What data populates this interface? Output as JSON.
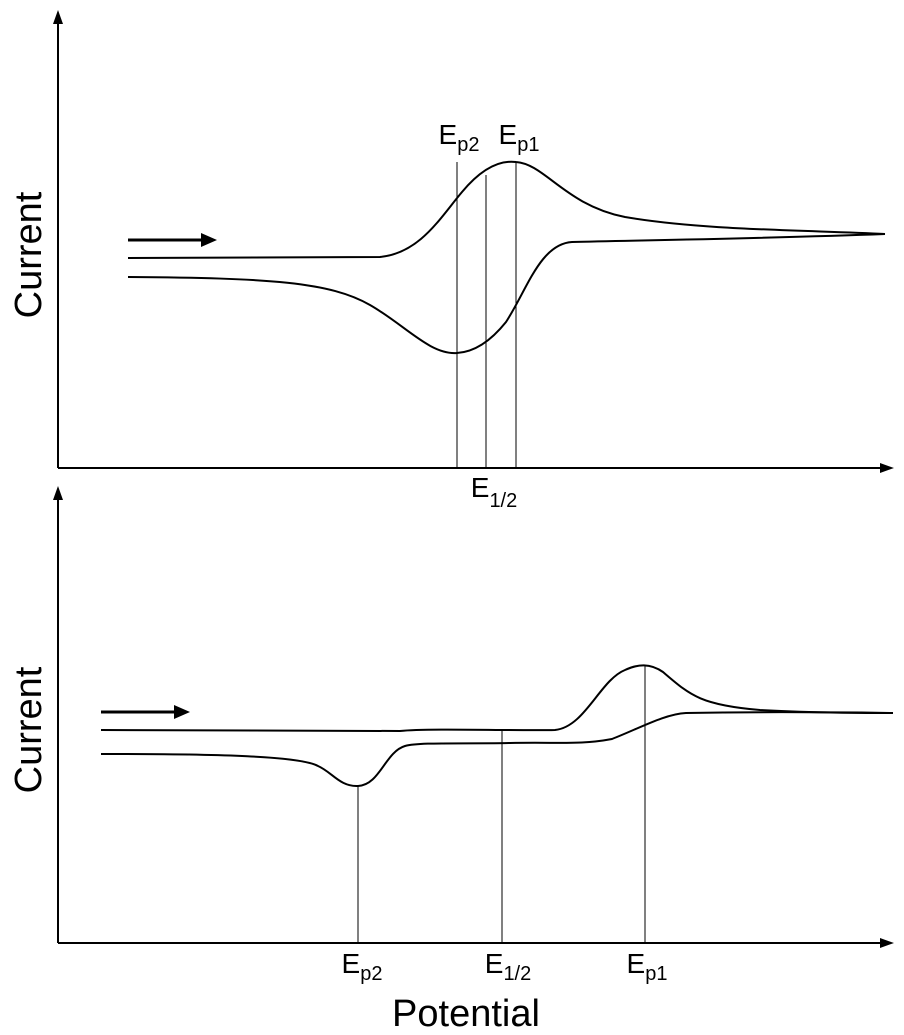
{
  "colors": {
    "ink": "#000000",
    "background": "#ffffff"
  },
  "panels": [
    {
      "id": "reversible",
      "ylabel": "Current",
      "scan_direction": "forward",
      "markers": [
        {
          "key": "ep2",
          "base": "E",
          "sub": "p2"
        },
        {
          "key": "e12",
          "base": "E",
          "sub": "1/2"
        },
        {
          "key": "ep1",
          "base": "E",
          "sub": "p1"
        }
      ]
    },
    {
      "id": "irreversible",
      "ylabel": "Current",
      "scan_direction": "forward",
      "markers": [
        {
          "key": "ep2",
          "base": "E",
          "sub": "p2"
        },
        {
          "key": "e12",
          "base": "E",
          "sub": "1/2"
        },
        {
          "key": "ep1",
          "base": "E",
          "sub": "p1"
        }
      ]
    }
  ],
  "xlabel": "Potential"
}
